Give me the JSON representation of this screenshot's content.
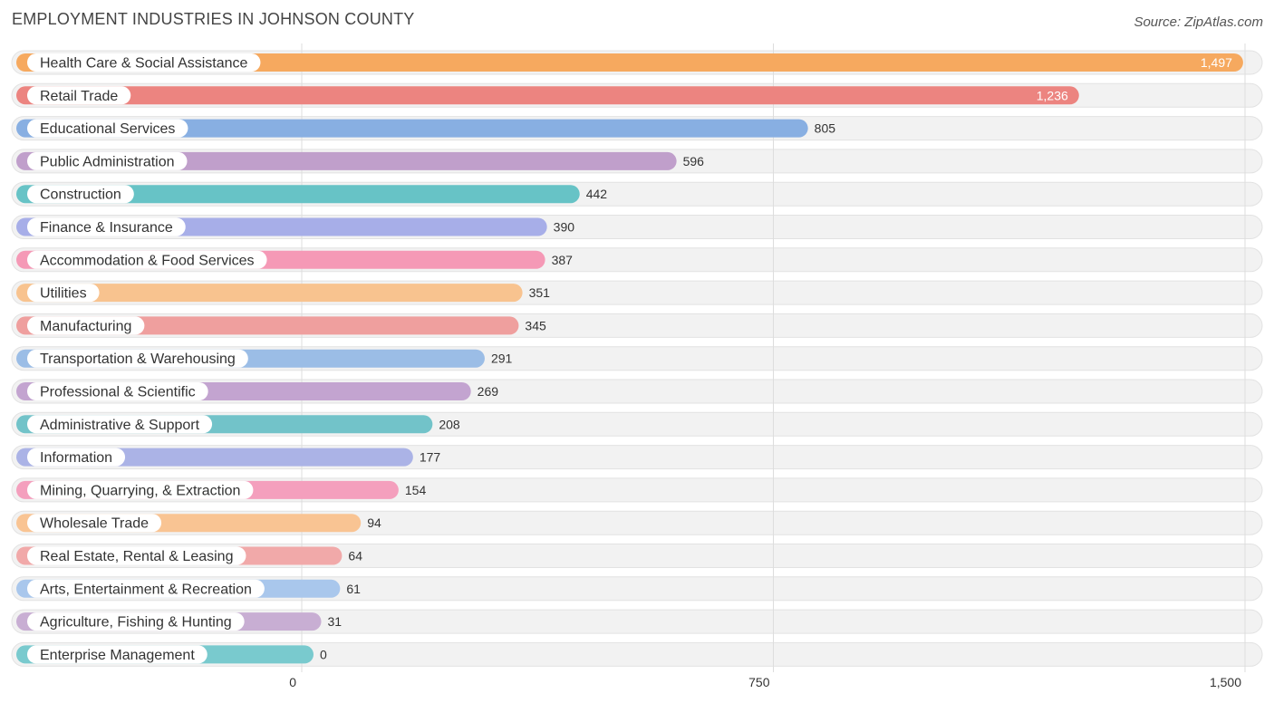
{
  "header": {
    "title": "EMPLOYMENT INDUSTRIES IN JOHNSON COUNTY",
    "source": "Source: ZipAtlas.com"
  },
  "chart_data": {
    "type": "bar",
    "orientation": "horizontal",
    "title": "EMPLOYMENT INDUSTRIES IN JOHNSON COUNTY",
    "xlabel": "",
    "ylabel": "",
    "xlim": [
      0,
      1500
    ],
    "grid": true,
    "legend": "none",
    "ticks": [
      {
        "value": 0,
        "label": "0"
      },
      {
        "value": 750,
        "label": "750"
      },
      {
        "value": 1500,
        "label": "1,500"
      }
    ],
    "categories": [
      "Health Care & Social Assistance",
      "Retail Trade",
      "Educational Services",
      "Public Administration",
      "Construction",
      "Finance & Insurance",
      "Accommodation & Food Services",
      "Utilities",
      "Manufacturing",
      "Transportation & Warehousing",
      "Professional & Scientific",
      "Administrative & Support",
      "Information",
      "Mining, Quarrying, & Extraction",
      "Wholesale Trade",
      "Real Estate, Rental & Leasing",
      "Arts, Entertainment & Recreation",
      "Agriculture, Fishing & Hunting",
      "Enterprise Management"
    ],
    "values": [
      1497,
      1236,
      805,
      596,
      442,
      390,
      387,
      351,
      345,
      291,
      269,
      208,
      177,
      154,
      94,
      64,
      61,
      31,
      0
    ],
    "value_labels": [
      "1,497",
      "1,236",
      "805",
      "596",
      "442",
      "390",
      "387",
      "351",
      "345",
      "291",
      "269",
      "208",
      "177",
      "154",
      "94",
      "64",
      "61",
      "31",
      "0"
    ],
    "colors": [
      "#f6a95f",
      "#ec8480",
      "#88afe2",
      "#c09fcb",
      "#67c3c6",
      "#a7aee8",
      "#f599b6",
      "#f8c38f",
      "#ef9f9e",
      "#9bbde6",
      "#c3a4d0",
      "#72c3c9",
      "#abb3e6",
      "#f49fbd",
      "#f9c493",
      "#f1a9a9",
      "#a9c7ec",
      "#c8aed3",
      "#79cace"
    ]
  }
}
